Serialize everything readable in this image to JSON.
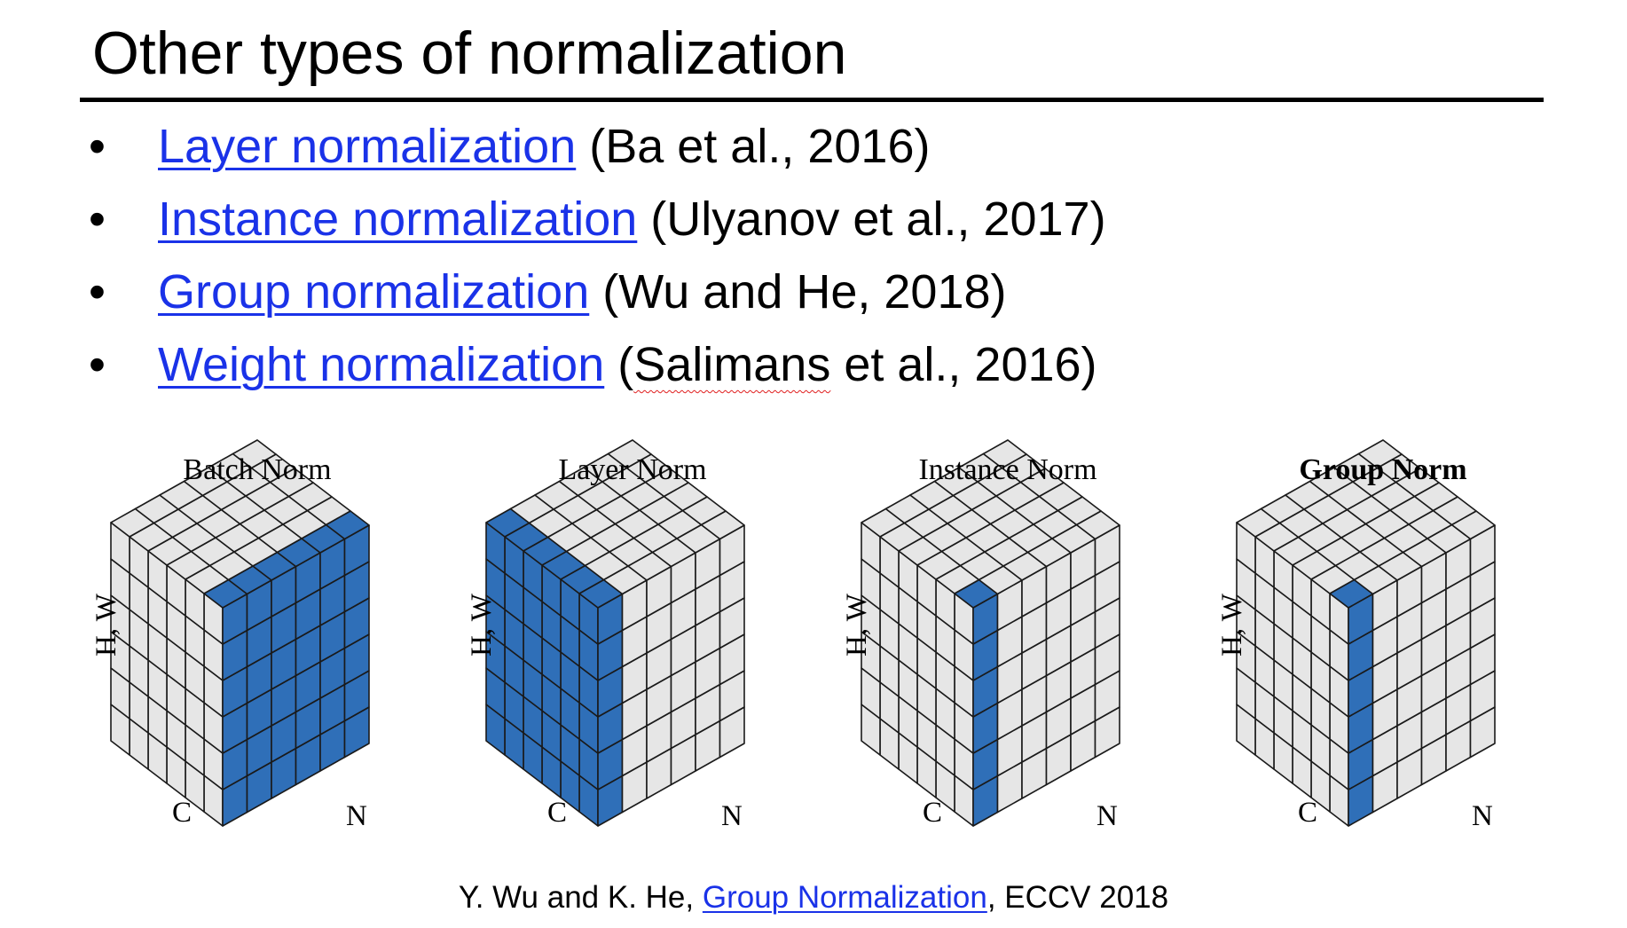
{
  "title": "Other types of normalization",
  "bullets": [
    {
      "link": "Layer normalization",
      "citation": " (Ba et al., 2016)"
    },
    {
      "link": "Instance normalization",
      "citation": " (Ulyanov et al., 2017)"
    },
    {
      "link": "Group normalization",
      "citation": " (Wu and He, 2018)"
    },
    {
      "link": "Weight normalization",
      "citation_pre": " (",
      "citation_flagged": "Salimans",
      "citation_post": " et al., 2016)"
    }
  ],
  "bullet_symbol": "•",
  "figure": {
    "axis_labels": {
      "hw": "H, W",
      "c": "C",
      "n": "N"
    },
    "colors": {
      "highlight": "#2f6fb8",
      "cell": "#e6e6e6",
      "grid": "#1a1a1a"
    },
    "panels": [
      {
        "title": "Batch Norm",
        "bold": false,
        "highlight": "batch"
      },
      {
        "title": "Layer Norm",
        "bold": false,
        "highlight": "layer"
      },
      {
        "title": "Instance Norm",
        "bold": false,
        "highlight": "instance"
      },
      {
        "title": "Group Norm",
        "bold": true,
        "highlight": "group"
      }
    ]
  },
  "caption": {
    "pre": "Y. Wu and K. He, ",
    "link": "Group Normalization",
    "post": ", ECCV 2018"
  }
}
